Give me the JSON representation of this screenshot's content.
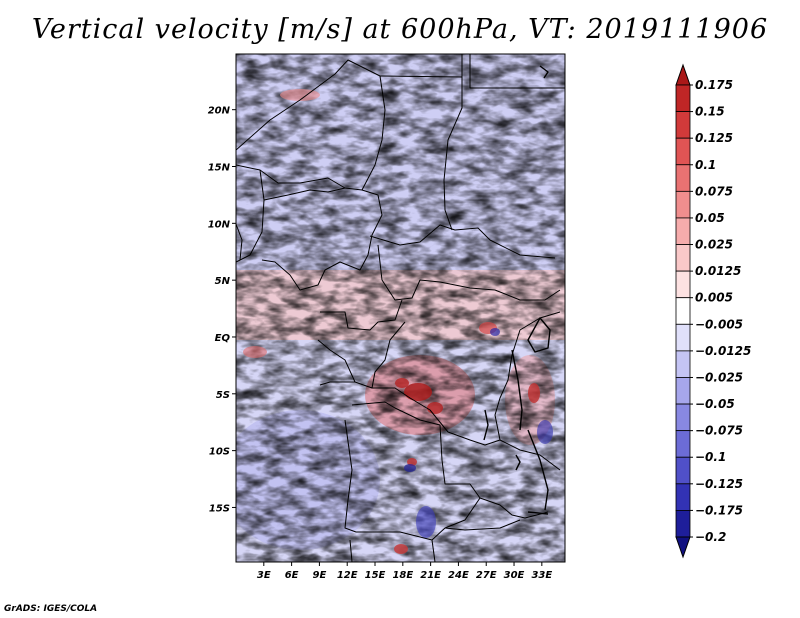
{
  "title": "Vertical velocity [m/s] at 600hPa, VT: 2019111906",
  "footer": "GrADS: IGES/COLA",
  "map": {
    "lat_range": [
      -19.8,
      24.9
    ],
    "lon_range": [
      0,
      35.5
    ],
    "lat_ticks": [
      {
        "value": 20,
        "label": "20N"
      },
      {
        "value": 15,
        "label": "15N"
      },
      {
        "value": 10,
        "label": "10N"
      },
      {
        "value": 5,
        "label": "5N"
      },
      {
        "value": 0,
        "label": "EQ"
      },
      {
        "value": -5,
        "label": "5S"
      },
      {
        "value": -10,
        "label": "10S"
      },
      {
        "value": -15,
        "label": "15S"
      }
    ],
    "lon_ticks": [
      {
        "value": 3,
        "label": "3E"
      },
      {
        "value": 6,
        "label": "6E"
      },
      {
        "value": 9,
        "label": "9E"
      },
      {
        "value": 12,
        "label": "12E"
      },
      {
        "value": 15,
        "label": "15E"
      },
      {
        "value": 18,
        "label": "18E"
      },
      {
        "value": 21,
        "label": "21E"
      },
      {
        "value": 24,
        "label": "24E"
      },
      {
        "value": 27,
        "label": "27E"
      },
      {
        "value": 30,
        "label": "30E"
      },
      {
        "value": 33,
        "label": "33E"
      }
    ]
  },
  "colorbar": {
    "levels": [
      "0.175",
      "0.15",
      "0.125",
      "0.1",
      "0.075",
      "0.05",
      "0.025",
      "0.0125",
      "0.005",
      "-0.005",
      "-0.0125",
      "-0.025",
      "-0.05",
      "-0.075",
      "-0.1",
      "-0.125",
      "-0.175",
      "-0.2"
    ],
    "colors": [
      "#aa1818",
      "#bf2626",
      "#d13a3a",
      "#e05454",
      "#e97272",
      "#f08e8e",
      "#f6acac",
      "#f9c8c8",
      "#fde2e2",
      "#ffffff",
      "#e0e0fa",
      "#c4c4f4",
      "#a6a6ec",
      "#8888e2",
      "#6c6cd6",
      "#5050c8",
      "#3232b4",
      "#1e1e9a",
      "#101080"
    ]
  }
}
